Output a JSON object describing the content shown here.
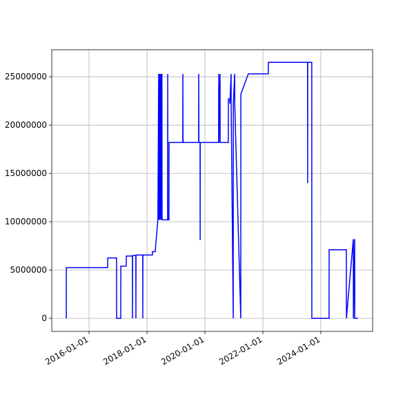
{
  "chart_data": {
    "type": "line",
    "color": "blue",
    "grid": true,
    "x": [
      "2015-03-20",
      "2015-03-21",
      "2016-08-23",
      "2016-08-24",
      "2016-12-13",
      "2016-12-14",
      "2017-02-04",
      "2017-02-05",
      "2017-04-14",
      "2017-04-15",
      "2017-07-01",
      "2017-07-02",
      "2017-07-03",
      "2017-08-13",
      "2017-08-14",
      "2017-08-15",
      "2017-11-08",
      "2017-11-09",
      "2017-11-10",
      "2018-03-10",
      "2018-03-11",
      "2018-04-14",
      "2018-05-18",
      "2018-05-28",
      "2018-05-30",
      "2018-06-11",
      "2018-06-13",
      "2018-06-25",
      "2018-06-27",
      "2018-07-08",
      "2018-07-10",
      "2018-09-18",
      "2018-09-19",
      "2018-09-21",
      "2018-10-05",
      "2018-10-06",
      "2019-03-28",
      "2019-03-29",
      "2019-03-31",
      "2019-10-14",
      "2019-10-15",
      "2019-10-17",
      "2019-11-01",
      "2019-11-02",
      "2019-11-03",
      "2020-06-22",
      "2020-06-23",
      "2020-06-25",
      "2020-07-10",
      "2020-07-11",
      "2020-10-22",
      "2020-10-23",
      "2020-11-10",
      "2020-11-11",
      "2020-11-26",
      "2020-11-27",
      "2020-12-23",
      "2020-12-24",
      "2021-01-10",
      "2021-01-11",
      "2021-03-28",
      "2021-03-29",
      "2021-07-01",
      "2022-03-10",
      "2022-03-11",
      "2023-07-18",
      "2023-07-19",
      "2023-07-20",
      "2023-09-09",
      "2023-09-10",
      "2024-04-14",
      "2024-04-15",
      "2024-11-18",
      "2024-11-19",
      "2025-02-14",
      "2025-02-15",
      "2025-03-03",
      "2025-03-04",
      "2025-04-14"
    ],
    "values": [
      0,
      5250000,
      5250000,
      6250000,
      6250000,
      0,
      0,
      5400000,
      5400000,
      6450000,
      6450000,
      0,
      6500000,
      6500000,
      0,
      6550000,
      6550000,
      0,
      6550000,
      6550000,
      6900000,
      6900000,
      10200000,
      25300000,
      10200000,
      25300000,
      10200000,
      25300000,
      10200000,
      25300000,
      10200000,
      10200000,
      25300000,
      10200000,
      10200000,
      18200000,
      18200000,
      25300000,
      18200000,
      18200000,
      25300000,
      18200000,
      18200000,
      8100000,
      18200000,
      18200000,
      25300000,
      18200000,
      25300000,
      18200000,
      18200000,
      22700000,
      22700000,
      22200000,
      25300000,
      22200000,
      0,
      22200000,
      25300000,
      22200000,
      0,
      23200000,
      25300000,
      25300000,
      26500000,
      26500000,
      14000000,
      26500000,
      26500000,
      0,
      0,
      7100000,
      7100000,
      0,
      8200000,
      0,
      8200000,
      0,
      0
    ],
    "xlim": [
      "2014-09-18",
      "2025-10-15"
    ],
    "xticks": [
      "2016-01-01",
      "2018-01-01",
      "2020-01-01",
      "2022-01-01",
      "2024-01-01"
    ],
    "ylim": [
      -1350000,
      27800000
    ],
    "yticks": [
      0,
      5000000,
      10000000,
      15000000,
      20000000,
      25000000
    ]
  }
}
